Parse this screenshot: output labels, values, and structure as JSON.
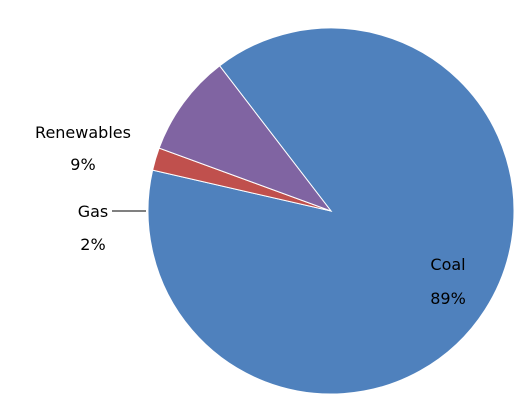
{
  "chart_data": {
    "type": "pie",
    "title": "",
    "slices": [
      {
        "label": "Coal",
        "percent_label": "89%",
        "value": 89,
        "color": "#4f81bd"
      },
      {
        "label": "Gas",
        "percent_label": "2%",
        "value": 2,
        "color": "#c0504d"
      },
      {
        "label": "Renewables",
        "percent_label": "9%",
        "value": 9,
        "color": "#8064a2"
      }
    ],
    "legend": "none",
    "data_labels": "category-and-percent"
  }
}
